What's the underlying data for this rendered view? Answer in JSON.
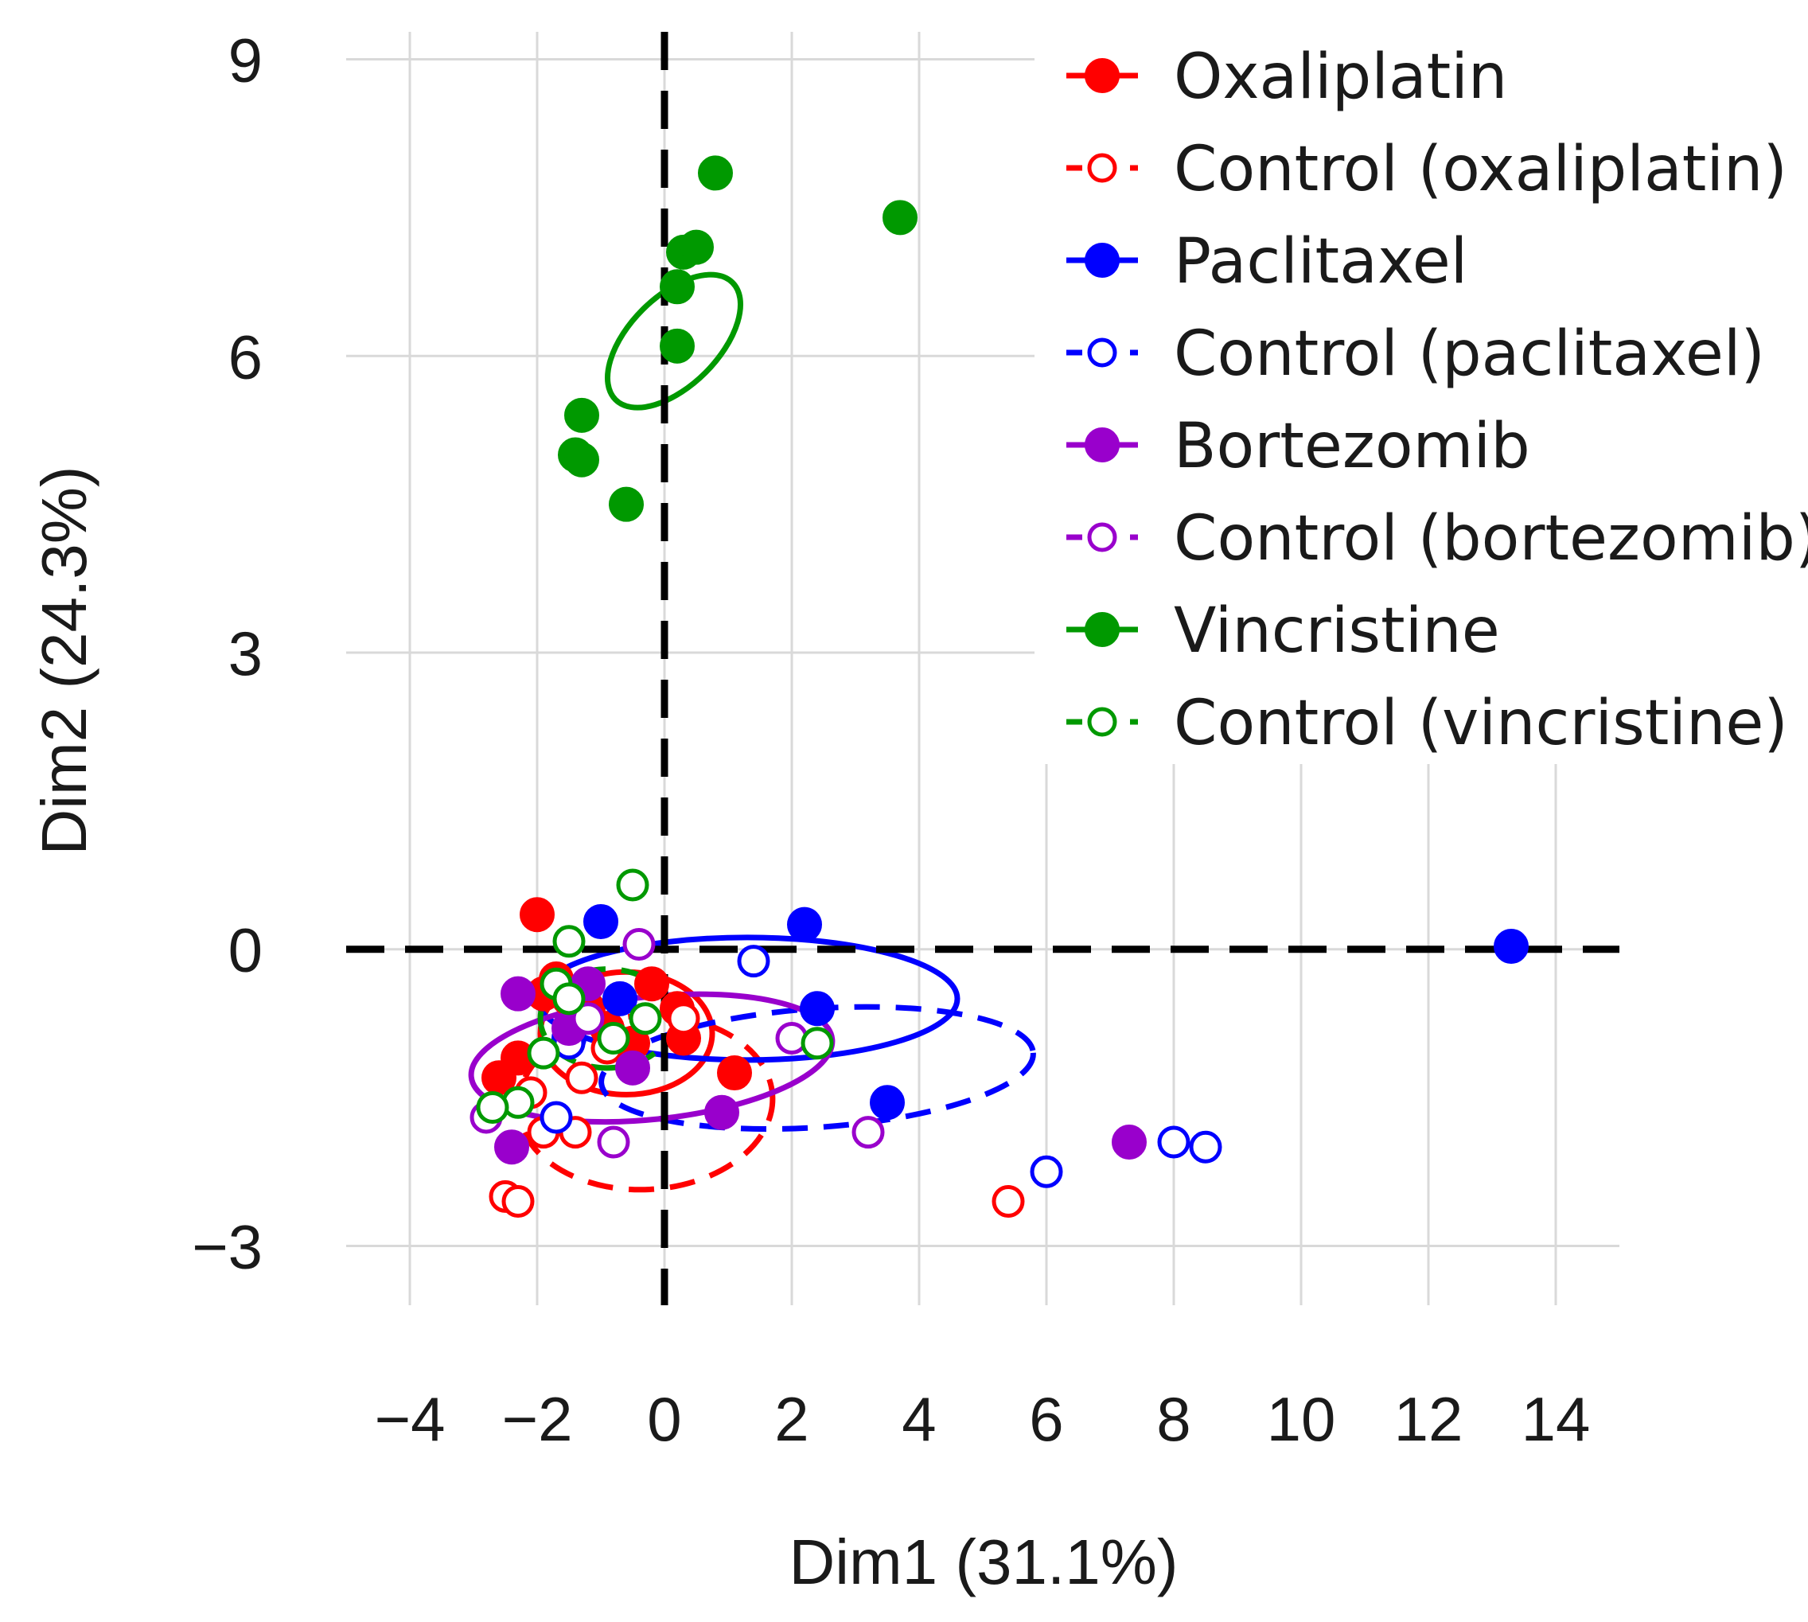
{
  "chart_data": {
    "type": "scatter",
    "title": "",
    "xlabel": "Dim1 (31.1%)",
    "ylabel": "Dim2 (24.3%)",
    "xlim": [
      -5,
      15
    ],
    "ylim": [
      -3.6,
      9.6
    ],
    "xticks": [
      -4,
      -2,
      0,
      2,
      4,
      6,
      8,
      10,
      12,
      14
    ],
    "yticks": [
      -3,
      0,
      3,
      6,
      9
    ],
    "xtick_labels": [
      "−4",
      "−2",
      "0",
      "2",
      "4",
      "6",
      "8",
      "10",
      "12",
      "14"
    ],
    "ytick_labels": [
      "−3",
      "0",
      "3",
      "6",
      "9"
    ],
    "grid": true,
    "reference_lines": {
      "x": 0,
      "y": 0,
      "style": "dashed"
    },
    "legend_position": "top-right",
    "series": [
      {
        "name": "Oxaliplatin",
        "color": "#ff0000",
        "filled": true,
        "line_style": "solid",
        "ellipse": {
          "cx": -0.6,
          "cy": -0.85,
          "rx": 1.35,
          "ry": 0.62,
          "angle_deg": 0
        },
        "points": [
          [
            -2.0,
            0.35
          ],
          [
            -1.9,
            -0.45
          ],
          [
            -1.7,
            -0.3
          ],
          [
            -1.5,
            -0.5
          ],
          [
            -1.2,
            -0.6
          ],
          [
            -0.9,
            -0.8
          ],
          [
            -0.5,
            -0.95
          ],
          [
            -0.2,
            -0.35
          ],
          [
            0.2,
            -0.6
          ],
          [
            0.3,
            -0.9
          ],
          [
            1.1,
            -1.25
          ],
          [
            -2.6,
            -1.3
          ],
          [
            -2.3,
            -1.1
          ]
        ]
      },
      {
        "name": "Control (oxaliplatin)",
        "color": "#ff0000",
        "filled": false,
        "line_style": "dashed",
        "ellipse": {
          "cx": -0.3,
          "cy": -1.55,
          "rx": 2.0,
          "ry": 0.88,
          "angle_deg": -3
        },
        "points": [
          [
            -2.5,
            -2.5
          ],
          [
            -2.3,
            -2.55
          ],
          [
            -1.9,
            -1.85
          ],
          [
            -1.4,
            -1.85
          ],
          [
            -1.3,
            -1.3
          ],
          [
            -0.9,
            -1.0
          ],
          [
            0.3,
            -0.7
          ],
          [
            5.4,
            -2.55
          ],
          [
            -2.1,
            -1.45
          ]
        ]
      },
      {
        "name": "Paclitaxel",
        "color": "#0000ff",
        "filled": true,
        "line_style": "solid",
        "ellipse": {
          "cx": 1.3,
          "cy": -0.5,
          "rx": 3.3,
          "ry": 0.62,
          "angle_deg": 0
        },
        "points": [
          [
            -1.0,
            0.28
          ],
          [
            2.2,
            0.25
          ],
          [
            2.4,
            -0.6
          ],
          [
            3.5,
            -1.55
          ],
          [
            13.3,
            0.03
          ],
          [
            -0.7,
            -0.5
          ],
          [
            -1.5,
            -0.9
          ]
        ]
      },
      {
        "name": "Control (paclitaxel)",
        "color": "#0000ff",
        "filled": false,
        "line_style": "dashed",
        "ellipse": {
          "cx": 2.4,
          "cy": -1.2,
          "rx": 3.4,
          "ry": 0.6,
          "angle_deg": -4
        },
        "points": [
          [
            1.4,
            -0.12
          ],
          [
            6.0,
            -2.25
          ],
          [
            8.0,
            -1.95
          ],
          [
            8.5,
            -2.0
          ],
          [
            -1.7,
            -1.7
          ],
          [
            -1.5,
            -0.95
          ]
        ]
      },
      {
        "name": "Bortezomib",
        "color": "#9900cc",
        "filled": true,
        "line_style": "solid",
        "ellipse": {
          "cx": -0.2,
          "cy": -1.1,
          "rx": 2.85,
          "ry": 0.62,
          "angle_deg": -6
        },
        "points": [
          [
            -2.3,
            -0.45
          ],
          [
            -1.2,
            -0.35
          ],
          [
            -0.5,
            -1.2
          ],
          [
            0.9,
            -1.65
          ],
          [
            -2.4,
            -2.0
          ],
          [
            7.3,
            -1.95
          ],
          [
            -1.5,
            -0.8
          ]
        ]
      },
      {
        "name": "Control (bortezomib)",
        "color": "#9900cc",
        "filled": false,
        "line_style": "dashed",
        "ellipse": null,
        "points": [
          [
            -0.4,
            0.05
          ],
          [
            -2.8,
            -1.7
          ],
          [
            -0.8,
            -1.95
          ],
          [
            2.0,
            -0.9
          ],
          [
            3.2,
            -1.85
          ],
          [
            -1.2,
            -0.7
          ]
        ]
      },
      {
        "name": "Vincristine",
        "color": "#009900",
        "filled": true,
        "line_style": "solid",
        "ellipse": {
          "cx": 0.15,
          "cy": 6.15,
          "rx": 1.3,
          "ry": 0.45,
          "angle_deg": -45
        },
        "points": [
          [
            0.8,
            7.85
          ],
          [
            3.7,
            7.4
          ],
          [
            0.3,
            7.05
          ],
          [
            0.5,
            7.1
          ],
          [
            0.2,
            6.7
          ],
          [
            0.2,
            6.1
          ],
          [
            -1.3,
            5.4
          ],
          [
            -1.4,
            5.0
          ],
          [
            -1.3,
            4.95
          ],
          [
            -0.6,
            4.5
          ]
        ]
      },
      {
        "name": "Control (vincristine)",
        "color": "#009900",
        "filled": false,
        "line_style": "dashed",
        "ellipse": {
          "cx": -0.9,
          "cy": -0.7,
          "rx": 1.05,
          "ry": 0.5,
          "angle_deg": 0
        },
        "points": [
          [
            -0.5,
            0.65
          ],
          [
            -1.5,
            0.08
          ],
          [
            -1.7,
            -0.35
          ],
          [
            -1.5,
            -0.5
          ],
          [
            -0.3,
            -0.7
          ],
          [
            -0.8,
            -0.9
          ],
          [
            -1.9,
            -1.05
          ],
          [
            2.4,
            -0.95
          ],
          [
            -2.3,
            -1.55
          ],
          [
            -2.7,
            -1.6
          ]
        ]
      }
    ]
  }
}
